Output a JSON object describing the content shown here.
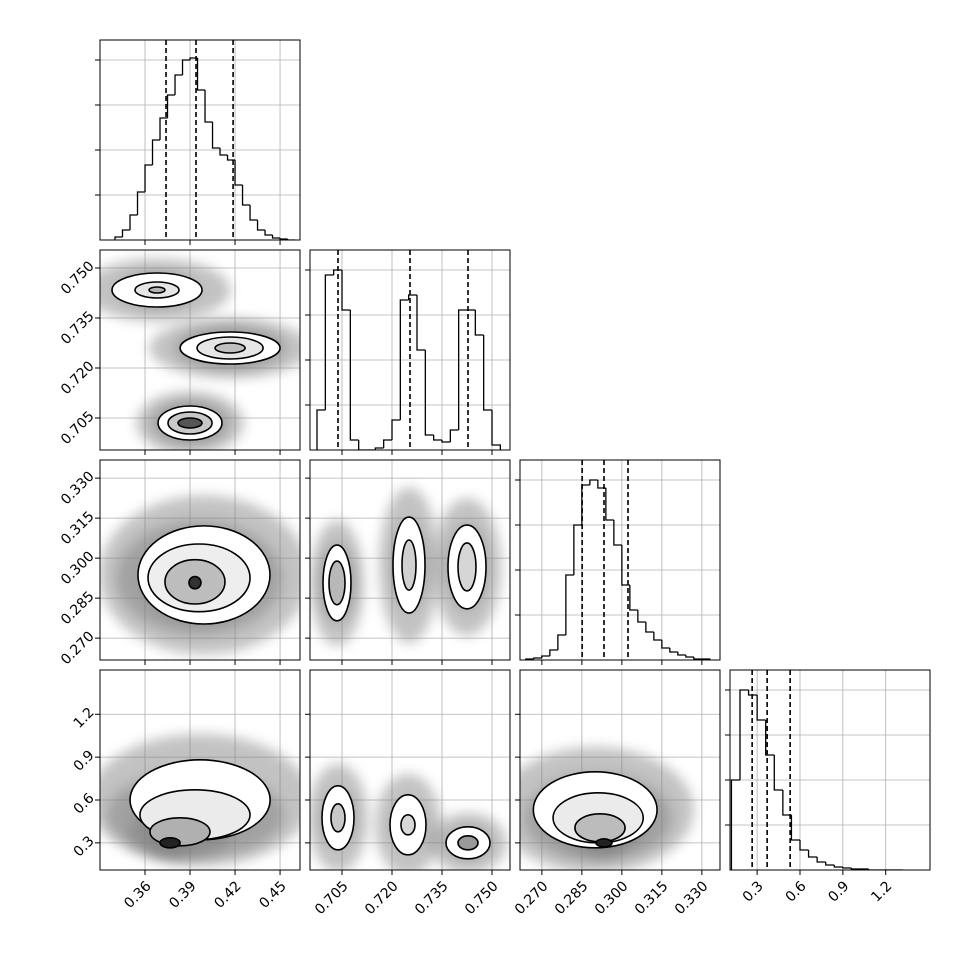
{
  "chart_data": [
    {
      "type": "histogram",
      "color": "#000000",
      "grid": true,
      "xlim": [
        0.33,
        0.4633
      ],
      "xticks": [
        0.36,
        0.39,
        0.42,
        0.45
      ],
      "ylim": [
        0,
        2000
      ],
      "yticks": [
        450,
        900,
        1350,
        1800
      ],
      "bins": [
        0.34,
        0.345,
        0.35,
        0.355,
        0.36,
        0.365,
        0.37,
        0.375,
        0.38,
        0.385,
        0.39,
        0.395,
        0.4,
        0.405,
        0.41,
        0.415,
        0.42,
        0.425,
        0.43,
        0.435,
        0.44,
        0.445,
        0.45,
        0.455,
        0.46
      ],
      "values": [
        30,
        100,
        250,
        480,
        750,
        1000,
        1220,
        1450,
        1650,
        1800,
        1820,
        1500,
        1180,
        920,
        850,
        800,
        550,
        350,
        200,
        100,
        50,
        20,
        10,
        0
      ],
      "quantiles": [
        0.374,
        0.394,
        0.4187
      ]
    },
    {
      "type": "contour",
      "grid": true,
      "xlim": [
        0.33,
        0.4633
      ],
      "xticks": [
        0.36,
        0.39,
        0.42,
        0.45
      ],
      "ylim": [
        0.6954,
        0.7554
      ],
      "yticks": [
        0.705,
        {
          "value": 0.72,
          "label": "0.720"
        },
        0.735,
        {
          "value": 0.75,
          "label": "0.750"
        }
      ],
      "contours": [
        {
          "x": 0.368,
          "y": 0.7434,
          "rx": 0.03,
          "ry": 0.0051,
          "fill": "#ffffff"
        },
        {
          "x": 0.368,
          "y": 0.7434,
          "rx": 0.0147,
          "ry": 0.0024,
          "fill": "#e6e6e6"
        },
        {
          "x": 0.368,
          "y": 0.7434,
          "rx": 0.0053,
          "ry": 0.0009,
          "fill": "#b4b4b4"
        },
        {
          "x": 0.4167,
          "y": 0.726,
          "rx": 0.0333,
          "ry": 0.0048,
          "fill": "#ffffff"
        },
        {
          "x": 0.4167,
          "y": 0.726,
          "rx": 0.022,
          "ry": 0.0033,
          "fill": "#e6e6e6"
        },
        {
          "x": 0.4167,
          "y": 0.726,
          "rx": 0.01,
          "ry": 0.0015,
          "fill": "#c0c0c0"
        },
        {
          "x": 0.39,
          "y": 0.7035,
          "rx": 0.0213,
          "ry": 0.0051,
          "fill": "#ffffff"
        },
        {
          "x": 0.39,
          "y": 0.7035,
          "rx": 0.0147,
          "ry": 0.0033,
          "fill": "#c8c8c8"
        },
        {
          "x": 0.39,
          "y": 0.7035,
          "rx": 0.008,
          "ry": 0.0015,
          "fill": "#555555"
        }
      ]
    },
    {
      "type": "histogram",
      "color": "#000000",
      "grid": true,
      "xlim": [
        0.6954,
        0.7554
      ],
      "xticks": [
        0.705,
        {
          "value": 0.72,
          "label": "0.720"
        },
        0.735,
        {
          "value": 0.75,
          "label": "0.750"
        }
      ],
      "ylim": [
        0,
        2000
      ],
      "yticks": [
        450,
        900,
        1350,
        1800
      ],
      "bins": [
        0.6975,
        0.7,
        0.7025,
        0.705,
        0.7075,
        0.71,
        0.7125,
        0.715,
        0.7175,
        0.72,
        0.7225,
        0.725,
        0.7275,
        0.73,
        0.7325,
        0.735,
        0.7375,
        0.74,
        0.7425,
        0.745,
        0.7475,
        0.75,
        0.7525
      ],
      "values": [
        400,
        1750,
        1800,
        1400,
        100,
        0,
        0,
        20,
        100,
        300,
        1500,
        1550,
        1000,
        150,
        100,
        80,
        200,
        1400,
        1400,
        1150,
        400,
        50
      ],
      "quantiles": [
        0.7038,
        0.7254,
        0.7428
      ]
    },
    {
      "type": "contour",
      "grid": true,
      "xlim": [
        0.33,
        0.4633
      ],
      "xticks": [
        0.36,
        0.39,
        0.42,
        0.45
      ],
      "ylim": [
        0.2618,
        0.3368
      ],
      "yticks": [
        {
          "value": 0.27,
          "label": "0.270"
        },
        0.285,
        {
          "value": 0.3,
          "label": "0.300"
        },
        0.315,
        {
          "value": 0.33,
          "label": "0.330"
        }
      ],
      "contours": [
        {
          "x": 0.3993,
          "y": 0.2937,
          "rx": 0.044,
          "ry": 0.0184,
          "fill": "#ffffff"
        },
        {
          "x": 0.396,
          "y": 0.2926,
          "rx": 0.034,
          "ry": 0.0127,
          "fill": "#eeeeee"
        },
        {
          "x": 0.3933,
          "y": 0.2911,
          "rx": 0.02,
          "ry": 0.0083,
          "fill": "#bdbdbd"
        },
        {
          "x": 0.3933,
          "y": 0.2908,
          "rx": 0.004,
          "ry": 0.0023,
          "fill": "#333333"
        }
      ]
    },
    {
      "type": "contour",
      "grid": true,
      "xlim": [
        0.6954,
        0.7554
      ],
      "xticks": [
        0.705,
        {
          "value": 0.72,
          "label": "0.720"
        },
        0.735,
        {
          "value": 0.75,
          "label": "0.750"
        }
      ],
      "ylim": [
        0.2618,
        0.3368
      ],
      "yticks": [
        {
          "value": 0.27,
          "label": "0.270"
        },
        0.285,
        {
          "value": 0.3,
          "label": "0.300"
        },
        0.315,
        {
          "value": 0.33,
          "label": "0.330"
        }
      ],
      "contours": [
        {
          "x": 0.7035,
          "y": 0.2907,
          "rx": 0.0042,
          "ry": 0.0142,
          "fill": "#ffffff"
        },
        {
          "x": 0.7035,
          "y": 0.2907,
          "rx": 0.0024,
          "ry": 0.0082,
          "fill": "#b8b8b8"
        },
        {
          "x": 0.7251,
          "y": 0.2974,
          "rx": 0.0048,
          "ry": 0.018,
          "fill": "#ffffff"
        },
        {
          "x": 0.7251,
          "y": 0.2974,
          "rx": 0.0021,
          "ry": 0.0094,
          "fill": "#d0d0d0"
        },
        {
          "x": 0.7425,
          "y": 0.2967,
          "rx": 0.0057,
          "ry": 0.0157,
          "fill": "#ffffff"
        },
        {
          "x": 0.7425,
          "y": 0.2967,
          "rx": 0.0027,
          "ry": 0.009,
          "fill": "#d6d6d6"
        }
      ]
    },
    {
      "type": "histogram",
      "color": "#000000",
      "grid": true,
      "xlim": [
        0.2618,
        0.3368
      ],
      "xticks": [
        {
          "value": 0.27,
          "label": "0.270"
        },
        0.285,
        {
          "value": 0.3,
          "label": "0.300"
        },
        0.315,
        {
          "value": 0.33,
          "label": "0.330"
        }
      ],
      "ylim": [
        0,
        2000
      ],
      "yticks": [
        450,
        900,
        1350,
        1800
      ],
      "bins": [
        0.264,
        0.267,
        0.27,
        0.273,
        0.276,
        0.279,
        0.282,
        0.285,
        0.288,
        0.291,
        0.294,
        0.297,
        0.3,
        0.303,
        0.306,
        0.309,
        0.312,
        0.315,
        0.318,
        0.321,
        0.324,
        0.327,
        0.33,
        0.333
      ],
      "values": [
        10,
        20,
        40,
        100,
        250,
        850,
        1350,
        1750,
        1800,
        1720,
        1400,
        1150,
        750,
        500,
        380,
        280,
        200,
        120,
        80,
        50,
        30,
        10,
        10
      ],
      "quantiles": [
        0.2851,
        0.2933,
        0.3023
      ]
    },
    {
      "type": "contour",
      "grid": true,
      "xlim": [
        0.33,
        0.4633
      ],
      "xticks": [
        0.36,
        0.39,
        0.42,
        0.45
      ],
      "ylim": [
        0.11,
        1.51
      ],
      "yticks": [
        0.3,
        0.6,
        0.9,
        1.2
      ],
      "contours": [
        {
          "x": 0.3967,
          "y": 0.601,
          "rx": 0.0467,
          "ry": 0.28,
          "fill": "#ffffff"
        },
        {
          "x": 0.3933,
          "y": 0.496,
          "rx": 0.0367,
          "ry": 0.175,
          "fill": "#ebebeb"
        },
        {
          "x": 0.3833,
          "y": 0.377,
          "rx": 0.02,
          "ry": 0.098,
          "fill": "#b0b0b0"
        },
        {
          "x": 0.3767,
          "y": 0.3,
          "rx": 0.0067,
          "ry": 0.035,
          "fill": "#222222"
        }
      ]
    },
    {
      "type": "contour",
      "grid": true,
      "xlim": [
        0.6954,
        0.7554
      ],
      "xticks": [
        0.705,
        {
          "value": 0.72,
          "label": "0.720"
        },
        0.735,
        {
          "value": 0.75,
          "label": "0.750"
        }
      ],
      "ylim": [
        0.11,
        1.51
      ],
      "yticks": [
        0.3,
        0.6,
        0.9,
        1.2
      ],
      "contours": [
        {
          "x": 0.7038,
          "y": 0.475,
          "rx": 0.0048,
          "ry": 0.224,
          "fill": "#ffffff"
        },
        {
          "x": 0.7038,
          "y": 0.475,
          "rx": 0.0021,
          "ry": 0.098,
          "fill": "#c8c8c8"
        },
        {
          "x": 0.7248,
          "y": 0.426,
          "rx": 0.0054,
          "ry": 0.21,
          "fill": "#ffffff"
        },
        {
          "x": 0.7248,
          "y": 0.426,
          "rx": 0.0021,
          "ry": 0.07,
          "fill": "#d8d8d8"
        },
        {
          "x": 0.7428,
          "y": 0.3,
          "rx": 0.0066,
          "ry": 0.112,
          "fill": "#ffffff"
        },
        {
          "x": 0.7428,
          "y": 0.3,
          "rx": 0.003,
          "ry": 0.049,
          "fill": "#9a9a9a"
        }
      ]
    },
    {
      "type": "contour",
      "grid": true,
      "xlim": [
        0.2618,
        0.3368
      ],
      "xticks": [
        {
          "value": 0.27,
          "label": "0.270"
        },
        0.285,
        {
          "value": 0.3,
          "label": "0.300"
        },
        0.315,
        {
          "value": 0.33,
          "label": "0.330"
        }
      ],
      "ylim": [
        0.11,
        1.51
      ],
      "yticks": [
        0.3,
        0.6,
        0.9,
        1.2
      ],
      "contours": [
        {
          "x": 0.29,
          "y": 0.531,
          "rx": 0.0232,
          "ry": 0.266,
          "fill": "#ffffff"
        },
        {
          "x": 0.2911,
          "y": 0.475,
          "rx": 0.0169,
          "ry": 0.175,
          "fill": "#ebebeb"
        },
        {
          "x": 0.2918,
          "y": 0.405,
          "rx": 0.0094,
          "ry": 0.098,
          "fill": "#bcbcbc"
        },
        {
          "x": 0.2933,
          "y": 0.3,
          "rx": 0.003,
          "ry": 0.028,
          "fill": "#222222"
        }
      ]
    },
    {
      "type": "histogram",
      "color": "#000000",
      "grid": true,
      "xlim": [
        0.11,
        1.51
      ],
      "xticks": [
        0.3,
        0.6,
        0.9,
        1.2
      ],
      "ylim": [
        0,
        2000
      ],
      "yticks": [
        450,
        900,
        1350,
        1800
      ],
      "bins": [
        0.12,
        0.18,
        0.24,
        0.3,
        0.36,
        0.42,
        0.48,
        0.54,
        0.6,
        0.66,
        0.72,
        0.78,
        0.84,
        0.9,
        0.96,
        1.02,
        1.08,
        1.14,
        1.2,
        1.26,
        1.32
      ],
      "values": [
        900,
        1800,
        1750,
        1500,
        1150,
        800,
        550,
        300,
        200,
        130,
        80,
        50,
        30,
        20,
        10,
        10,
        0,
        0,
        0,
        0
      ],
      "quantiles": [
        0.265,
        0.37,
        0.531
      ]
    }
  ]
}
